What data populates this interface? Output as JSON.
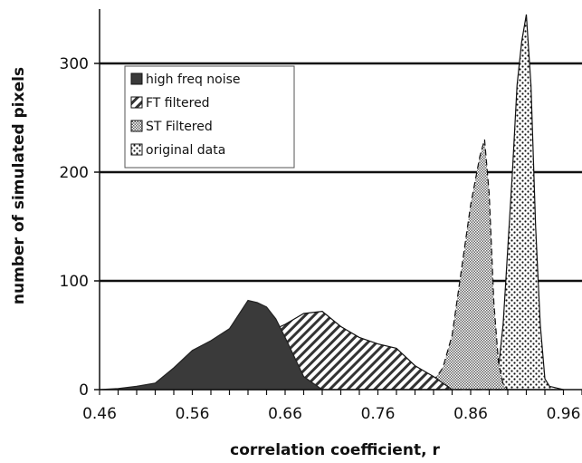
{
  "chart_data": {
    "type": "area",
    "title": "",
    "xlabel": "correlation coefficient, r",
    "ylabel": "number of simulated pixels",
    "xlim": [
      0.46,
      0.98
    ],
    "ylim": [
      0,
      350
    ],
    "x_ticks": [
      "0.46",
      "0.56",
      "0.66",
      "0.76",
      "0.86",
      "0.96"
    ],
    "x_tick_values": [
      0.46,
      0.56,
      0.66,
      0.76,
      0.86,
      0.96
    ],
    "y_ticks": [
      "0",
      "100",
      "200",
      "300"
    ],
    "y_tick_values": [
      0,
      100,
      200,
      300
    ],
    "grid": "horizontal",
    "legend_position": "top-left",
    "series": [
      {
        "name": "original data",
        "pattern": "dots",
        "x": [
          0.88,
          0.885,
          0.89,
          0.895,
          0.9,
          0.905,
          0.91,
          0.915,
          0.92,
          0.925,
          0.93,
          0.935,
          0.94,
          0.945,
          0.95,
          0.955,
          0.96
        ],
        "y": [
          0,
          5,
          20,
          60,
          130,
          200,
          280,
          320,
          345,
          280,
          150,
          60,
          10,
          3,
          2,
          1,
          0
        ]
      },
      {
        "name": "ST Filtered",
        "pattern": "crosshatch",
        "x": [
          0.8,
          0.81,
          0.82,
          0.83,
          0.84,
          0.85,
          0.86,
          0.87,
          0.875,
          0.88,
          0.885,
          0.89,
          0.895,
          0.9
        ],
        "y": [
          0,
          2,
          8,
          20,
          50,
          110,
          170,
          215,
          230,
          180,
          80,
          25,
          5,
          0
        ]
      },
      {
        "name": "FT filtered",
        "pattern": "diagonal",
        "x": [
          0.48,
          0.5,
          0.52,
          0.54,
          0.56,
          0.58,
          0.6,
          0.62,
          0.64,
          0.66,
          0.68,
          0.7,
          0.72,
          0.74,
          0.76,
          0.78,
          0.8,
          0.82,
          0.84
        ],
        "y": [
          0,
          1,
          3,
          8,
          18,
          28,
          35,
          45,
          52,
          60,
          70,
          72,
          58,
          48,
          42,
          38,
          22,
          12,
          0
        ]
      },
      {
        "name": "high freq noise",
        "pattern": "solid",
        "x": [
          0.46,
          0.48,
          0.5,
          0.52,
          0.54,
          0.56,
          0.58,
          0.6,
          0.62,
          0.63,
          0.64,
          0.65,
          0.66,
          0.67,
          0.68,
          0.7
        ],
        "y": [
          0,
          1,
          3,
          6,
          20,
          36,
          45,
          56,
          82,
          80,
          76,
          65,
          48,
          30,
          12,
          0
        ]
      }
    ],
    "legend_order": [
      "high freq noise",
      "FT filtered",
      "ST Filtered",
      "original data"
    ]
  }
}
